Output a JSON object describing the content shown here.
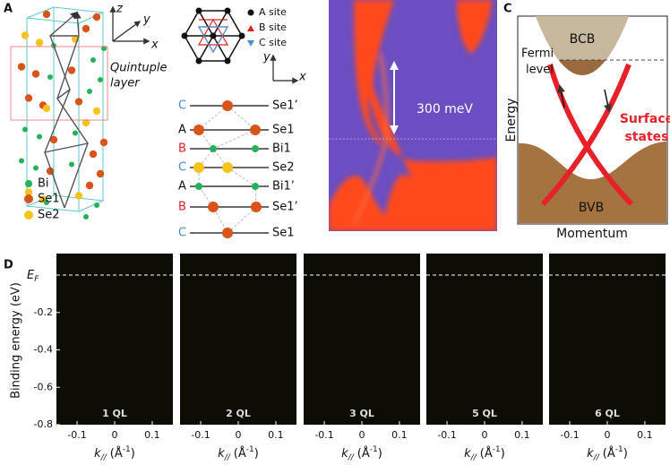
{
  "panel_labels": [
    "A",
    "B",
    "C",
    "D"
  ],
  "panel_a": {
    "axes": [
      "z",
      "y",
      "x"
    ],
    "layer_label": [
      "Quintuple",
      "layer"
    ],
    "legend": [
      "Bi",
      "Se1",
      "Se2"
    ]
  },
  "sites": {
    "legend": [
      "A site",
      "B site",
      "C site"
    ],
    "axes": [
      "y",
      "x"
    ]
  },
  "stacking": [
    {
      "site": "C",
      "atom": "Se1’"
    },
    {
      "site": "A",
      "atom": "Se1"
    },
    {
      "site": "B",
      "atom": "Bi1"
    },
    {
      "site": "C",
      "atom": "Se2"
    },
    {
      "site": "A",
      "atom": "Bi1’"
    },
    {
      "site": "B",
      "atom": "Se1’"
    },
    {
      "site": "C",
      "atom": "Se1"
    }
  ],
  "panel_b": {
    "gap_label": "300 meV"
  },
  "panel_c": {
    "bcb": "BCB",
    "fermi": [
      "Fermi",
      "level"
    ],
    "surface": [
      "Surface",
      "states"
    ],
    "bvb": "BVB",
    "y_label": "Energy",
    "x_label": "Momentum"
  },
  "panel_d": {
    "fermi_label": {
      "main": "E",
      "sub": "F"
    },
    "y_label": "Binding energy (eV)",
    "x_label": {
      "symbol": "k",
      "sub": "//",
      "unit": "(Å",
      "sup": "-1",
      "close": ")"
    },
    "ylim": [
      -0.8,
      0.115
    ],
    "yticks": [
      -0.2,
      -0.4,
      -0.6,
      -0.8
    ],
    "xlim": [
      -0.155,
      0.155
    ],
    "xticks": [
      -0.1,
      0,
      0.1
    ],
    "panels": [
      "1 QL",
      "2 QL",
      "3 QL",
      "5 QL",
      "6 QL"
    ]
  }
}
